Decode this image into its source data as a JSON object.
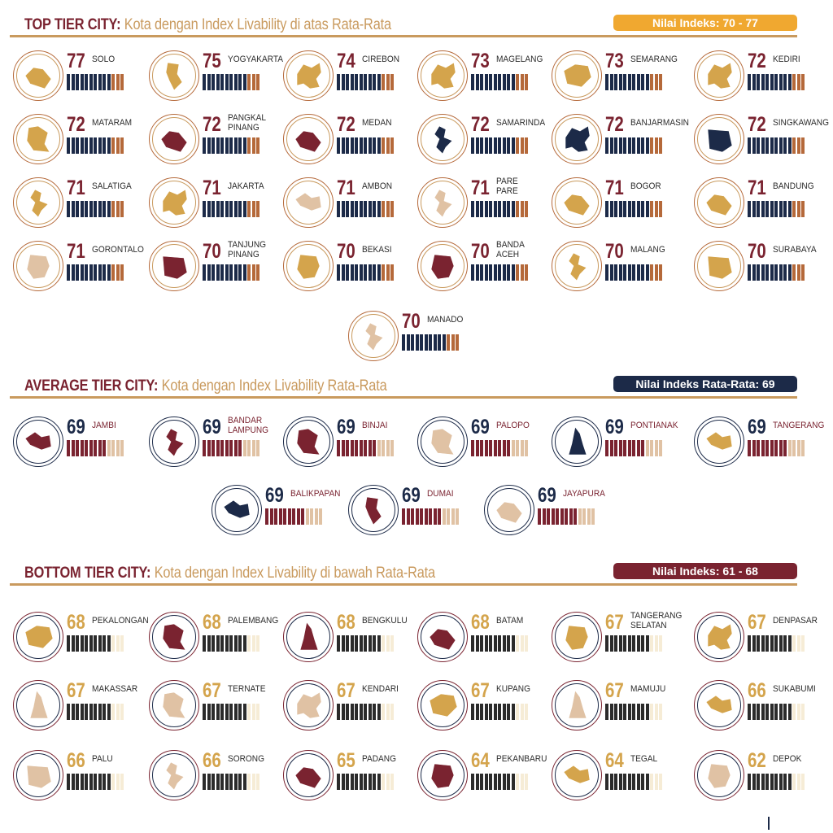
{
  "colors": {
    "gold": "#d4a44c",
    "goldBadge": "#f0a830",
    "maroon": "#7a2330",
    "navy": "#1c2a48",
    "tan": "#c99a5e",
    "rust": "#b5693a",
    "cream": "#f6ecd6",
    "sandMap": "#e0c2a4",
    "textDark": "#2b2b2b"
  },
  "sections": {
    "top": {
      "title_bold": "TOP TIER CITY:",
      "title_rest": " Kota dengan Index Livability di atas Rata-Rata",
      "badge": "Nilai Indeks: 70 - 77"
    },
    "average": {
      "title_bold": "AVERAGE TIER CITY:",
      "title_rest": " Kota dengan Index Livability Rata-Rata",
      "badge": "Nilai Indeks Rata-Rata: 69"
    },
    "bottom": {
      "title_bold": "BOTTOM TIER CITY:",
      "title_rest": " Kota dengan Index Livability di bawah  Rata-Rata",
      "badge": "Nilai Indeks: 61 - 68"
    }
  },
  "chart_data": {
    "type": "table",
    "tiers": [
      {
        "tier": "top",
        "cities": [
          {
            "name": "SOLO",
            "score": 77,
            "map_color": "gold"
          },
          {
            "name": "YOGYAKARTA",
            "score": 75,
            "map_color": "gold"
          },
          {
            "name": "CIREBON",
            "score": 74,
            "map_color": "gold"
          },
          {
            "name": "MAGELANG",
            "score": 73,
            "map_color": "gold"
          },
          {
            "name": "SEMARANG",
            "score": 73,
            "map_color": "gold"
          },
          {
            "name": "KEDIRI",
            "score": 72,
            "map_color": "gold"
          },
          {
            "name": "MATARAM",
            "score": 72,
            "map_color": "gold"
          },
          {
            "name": "PANGKAL\nPINANG",
            "score": 72,
            "map_color": "maroon"
          },
          {
            "name": "MEDAN",
            "score": 72,
            "map_color": "maroon"
          },
          {
            "name": "SAMARINDA",
            "score": 72,
            "map_color": "navy"
          },
          {
            "name": "BANJARMASIN",
            "score": 72,
            "map_color": "navy"
          },
          {
            "name": "SINGKAWANG",
            "score": 72,
            "map_color": "navy"
          },
          {
            "name": "SALATIGA",
            "score": 71,
            "map_color": "gold"
          },
          {
            "name": "JAKARTA",
            "score": 71,
            "map_color": "gold"
          },
          {
            "name": "AMBON",
            "score": 71,
            "map_color": "sand"
          },
          {
            "name": "PARE\nPARE",
            "score": 71,
            "map_color": "sand"
          },
          {
            "name": "BOGOR",
            "score": 71,
            "map_color": "gold"
          },
          {
            "name": "BANDUNG",
            "score": 71,
            "map_color": "gold"
          },
          {
            "name": "GORONTALO",
            "score": 71,
            "map_color": "sand"
          },
          {
            "name": "TANJUNG\nPINANG",
            "score": 70,
            "map_color": "maroon"
          },
          {
            "name": "BEKASI",
            "score": 70,
            "map_color": "gold"
          },
          {
            "name": "BANDA\nACEH",
            "score": 70,
            "map_color": "maroon"
          },
          {
            "name": "MALANG",
            "score": 70,
            "map_color": "gold"
          },
          {
            "name": "SURABAYA",
            "score": 70,
            "map_color": "gold"
          },
          {
            "name": "MANADO",
            "score": 70,
            "map_color": "sand"
          }
        ]
      },
      {
        "tier": "average",
        "cities": [
          {
            "name": "JAMBI",
            "score": 69,
            "map_color": "maroon"
          },
          {
            "name": "BANDAR\nLAMPUNG",
            "score": 69,
            "map_color": "maroon"
          },
          {
            "name": "BINJAI",
            "score": 69,
            "map_color": "maroon"
          },
          {
            "name": "PALOPO",
            "score": 69,
            "map_color": "sand"
          },
          {
            "name": "PONTIANAK",
            "score": 69,
            "map_color": "navy"
          },
          {
            "name": "TANGERANG",
            "score": 69,
            "map_color": "gold"
          },
          {
            "name": "BALIKPAPAN",
            "score": 69,
            "map_color": "navy"
          },
          {
            "name": "DUMAI",
            "score": 69,
            "map_color": "maroon"
          },
          {
            "name": "JAYAPURA",
            "score": 69,
            "map_color": "sand"
          }
        ]
      },
      {
        "tier": "bottom",
        "cities": [
          {
            "name": "PEKALONGAN",
            "score": 68,
            "map_color": "gold"
          },
          {
            "name": "PALEMBANG",
            "score": 68,
            "map_color": "maroon"
          },
          {
            "name": "BENGKULU",
            "score": 68,
            "map_color": "maroon"
          },
          {
            "name": "BATAM",
            "score": 68,
            "map_color": "maroon"
          },
          {
            "name": "TANGERANG\nSELATAN",
            "score": 67,
            "map_color": "gold"
          },
          {
            "name": "DENPASAR",
            "score": 67,
            "map_color": "gold"
          },
          {
            "name": "MAKASSAR",
            "score": 67,
            "map_color": "sand"
          },
          {
            "name": "TERNATE",
            "score": 67,
            "map_color": "sand"
          },
          {
            "name": "KENDARI",
            "score": 67,
            "map_color": "sand"
          },
          {
            "name": "KUPANG",
            "score": 67,
            "map_color": "gold"
          },
          {
            "name": "MAMUJU",
            "score": 67,
            "map_color": "sand"
          },
          {
            "name": "SUKABUMI",
            "score": 66,
            "map_color": "gold"
          },
          {
            "name": "PALU",
            "score": 66,
            "map_color": "sand"
          },
          {
            "name": "SORONG",
            "score": 66,
            "map_color": "sand"
          },
          {
            "name": "PADANG",
            "score": 65,
            "map_color": "maroon"
          },
          {
            "name": "PEKANBARU",
            "score": 64,
            "map_color": "maroon"
          },
          {
            "name": "TEGAL",
            "score": 64,
            "map_color": "gold"
          },
          {
            "name": "DEPOK",
            "score": 62,
            "map_color": "sand"
          }
        ]
      }
    ]
  }
}
